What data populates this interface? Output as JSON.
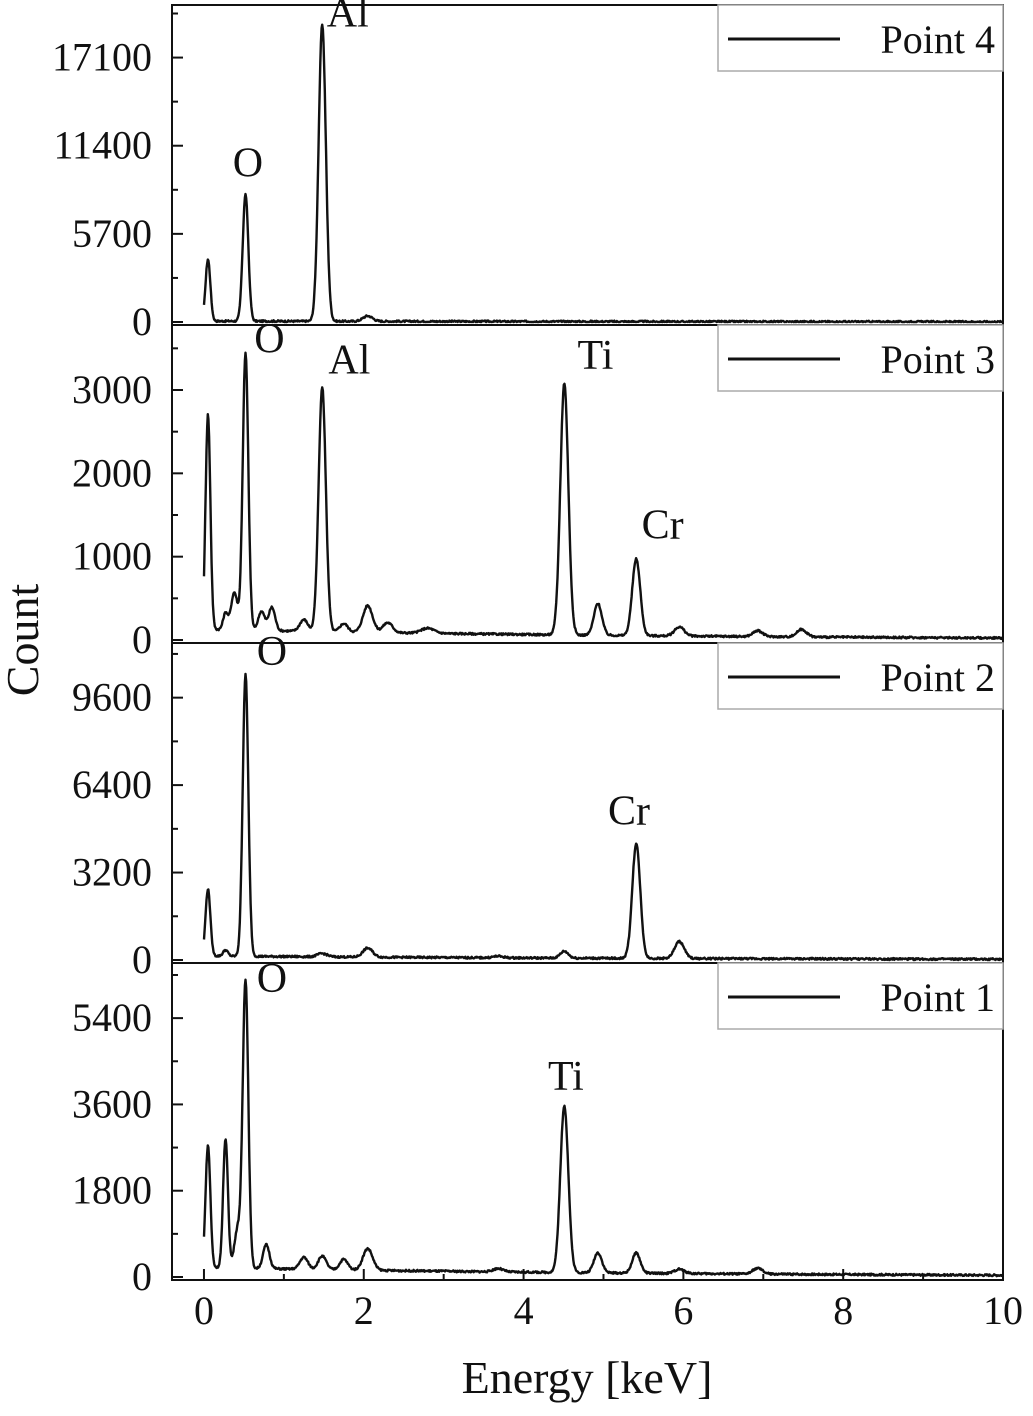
{
  "chart_data": {
    "type": "line",
    "xlabel": "Energy [keV]",
    "ylabel": "Count",
    "xlim": [
      -0.4,
      10
    ],
    "x_ticks": [
      "0",
      "2",
      "4",
      "6",
      "8",
      "10"
    ],
    "grid": false,
    "legend_position": "top-right",
    "line_color": "#111111",
    "panels": [
      {
        "name": "Point 4",
        "ylim": [
          0,
          20500
        ],
        "y_ticks": [
          "0",
          "5700",
          "11400",
          "17100"
        ],
        "peaks": [
          {
            "x": 0.05,
            "y": 4000,
            "w": 0.03
          },
          {
            "x": 0.52,
            "y": 8200,
            "w": 0.035
          },
          {
            "x": 1.48,
            "y": 19200,
            "w": 0.045
          },
          {
            "x": 2.05,
            "y": 350,
            "w": 0.06
          }
        ],
        "baseline": 60,
        "annotations": [
          {
            "label": "O",
            "x": 0.55,
            "y": 9400
          },
          {
            "label": "Al",
            "x": 1.8,
            "y": 19100
          }
        ]
      },
      {
        "name": "Point 3",
        "ylim": [
          0,
          3780
        ],
        "y_ticks": [
          "0",
          "1000",
          "2000",
          "3000"
        ],
        "peaks": [
          {
            "x": 0.05,
            "y": 2580,
            "w": 0.03
          },
          {
            "x": 0.27,
            "y": 200,
            "w": 0.03
          },
          {
            "x": 0.38,
            "y": 450,
            "w": 0.04
          },
          {
            "x": 0.52,
            "y": 3320,
            "w": 0.035
          },
          {
            "x": 0.72,
            "y": 230,
            "w": 0.04
          },
          {
            "x": 0.85,
            "y": 280,
            "w": 0.04
          },
          {
            "x": 1.25,
            "y": 140,
            "w": 0.05
          },
          {
            "x": 1.48,
            "y": 2930,
            "w": 0.045
          },
          {
            "x": 1.75,
            "y": 100,
            "w": 0.05
          },
          {
            "x": 2.05,
            "y": 320,
            "w": 0.06
          },
          {
            "x": 2.3,
            "y": 120,
            "w": 0.06
          },
          {
            "x": 2.8,
            "y": 60,
            "w": 0.08
          },
          {
            "x": 4.51,
            "y": 3020,
            "w": 0.05
          },
          {
            "x": 4.93,
            "y": 380,
            "w": 0.05
          },
          {
            "x": 5.41,
            "y": 920,
            "w": 0.05
          },
          {
            "x": 5.95,
            "y": 110,
            "w": 0.06
          },
          {
            "x": 6.93,
            "y": 70,
            "w": 0.06
          },
          {
            "x": 7.48,
            "y": 90,
            "w": 0.06
          }
        ],
        "baseline": 130,
        "annotations": [
          {
            "label": "O",
            "x": 0.82,
            "y": 3450
          },
          {
            "label": "Al",
            "x": 1.82,
            "y": 3200
          },
          {
            "label": "Ti",
            "x": 4.9,
            "y": 3250
          },
          {
            "label": "Cr",
            "x": 5.74,
            "y": 1220
          }
        ]
      },
      {
        "name": "Point 2",
        "ylim": [
          0,
          11600
        ],
        "y_ticks": [
          "0",
          "3200",
          "6400",
          "9600"
        ],
        "peaks": [
          {
            "x": 0.05,
            "y": 2450,
            "w": 0.03
          },
          {
            "x": 0.27,
            "y": 220,
            "w": 0.03
          },
          {
            "x": 0.52,
            "y": 10300,
            "w": 0.035
          },
          {
            "x": 1.48,
            "y": 120,
            "w": 0.06
          },
          {
            "x": 2.05,
            "y": 330,
            "w": 0.06
          },
          {
            "x": 3.68,
            "y": 60,
            "w": 0.06
          },
          {
            "x": 4.51,
            "y": 250,
            "w": 0.05
          },
          {
            "x": 5.41,
            "y": 4200,
            "w": 0.05
          },
          {
            "x": 5.95,
            "y": 620,
            "w": 0.06
          }
        ],
        "baseline": 150,
        "annotations": [
          {
            "label": "O",
            "x": 0.85,
            "y": 10800
          },
          {
            "label": "Cr",
            "x": 5.32,
            "y": 4950
          }
        ]
      },
      {
        "name": "Point 1",
        "ylim": [
          0,
          6550
        ],
        "y_ticks": [
          "0",
          "1800",
          "3600",
          "5400"
        ],
        "peaks": [
          {
            "x": 0.05,
            "y": 2550,
            "w": 0.03
          },
          {
            "x": 0.27,
            "y": 2700,
            "w": 0.03
          },
          {
            "x": 0.42,
            "y": 800,
            "w": 0.04
          },
          {
            "x": 0.52,
            "y": 6000,
            "w": 0.035
          },
          {
            "x": 0.78,
            "y": 500,
            "w": 0.04
          },
          {
            "x": 1.25,
            "y": 250,
            "w": 0.05
          },
          {
            "x": 1.48,
            "y": 280,
            "w": 0.05
          },
          {
            "x": 1.75,
            "y": 220,
            "w": 0.05
          },
          {
            "x": 2.05,
            "y": 450,
            "w": 0.06
          },
          {
            "x": 3.68,
            "y": 70,
            "w": 0.06
          },
          {
            "x": 4.51,
            "y": 3480,
            "w": 0.05
          },
          {
            "x": 4.93,
            "y": 420,
            "w": 0.05
          },
          {
            "x": 5.41,
            "y": 420,
            "w": 0.05
          },
          {
            "x": 5.95,
            "y": 90,
            "w": 0.06
          },
          {
            "x": 6.93,
            "y": 120,
            "w": 0.06
          }
        ],
        "baseline": 200,
        "annotations": [
          {
            "label": "O",
            "x": 0.85,
            "y": 5950
          },
          {
            "label": "Ti",
            "x": 4.53,
            "y": 3900
          }
        ]
      }
    ]
  }
}
